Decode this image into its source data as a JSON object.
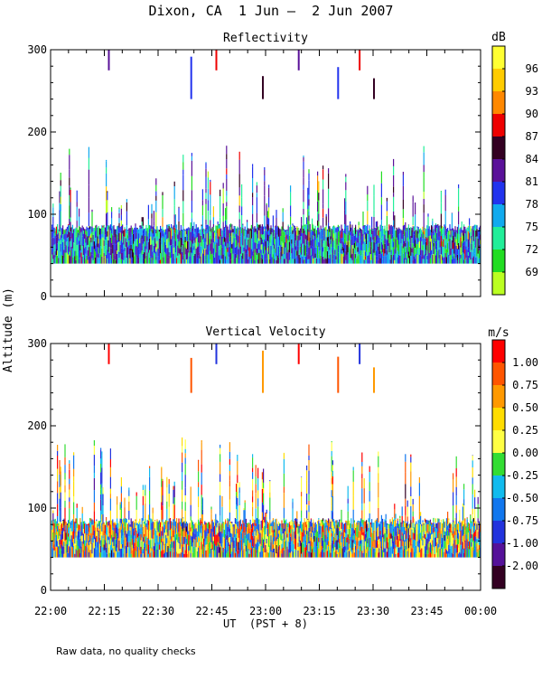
{
  "figure": {
    "title": "Dixon, CA  1 Jun —  2 Jun 2007",
    "ylabel": "Altitude (m)",
    "xlabel": "UT  (PST + 8)",
    "note": "Raw data, no quality checks"
  },
  "chart_data": [
    {
      "type": "heatmap",
      "title": "Reflectivity",
      "ylabel": "Altitude (m)",
      "xlabel": "UT  (PST + 8)",
      "x_ticks": [
        "22:00",
        "22:15",
        "22:30",
        "22:45",
        "23:00",
        "23:15",
        "23:30",
        "23:45",
        "00:00"
      ],
      "xlim_minutes": [
        0,
        120
      ],
      "y_ticks": [
        0,
        100,
        200,
        300
      ],
      "ylim": [
        0,
        300
      ],
      "colorbar": {
        "unit": "dB",
        "ticks": [
          "96",
          "93",
          "90",
          "87",
          "84",
          "81",
          "78",
          "75",
          "72",
          "69"
        ],
        "colors": [
          "#ffff33",
          "#ffcc00",
          "#ff8800",
          "#ee0000",
          "#330022",
          "#5a1199",
          "#2233ee",
          "#11aaee",
          "#22ee99",
          "#22dd22",
          "#bbff22"
        ]
      },
      "data_lower_altitude_m": 40,
      "data_typical_top_m": 80,
      "data_max_altitude_m": 300
    },
    {
      "type": "heatmap",
      "title": "Vertical Velocity",
      "ylabel": "Altitude (m)",
      "xlabel": "UT  (PST + 8)",
      "x_ticks": [
        "22:00",
        "22:15",
        "22:30",
        "22:45",
        "23:00",
        "23:15",
        "23:30",
        "23:45",
        "00:00"
      ],
      "xlim_minutes": [
        0,
        120
      ],
      "y_ticks": [
        0,
        100,
        200,
        300
      ],
      "ylim": [
        0,
        300
      ],
      "colorbar": {
        "unit": "m/s",
        "ticks": [
          "1.00",
          "0.75",
          "0.50",
          "0.25",
          "0.00",
          "-0.25",
          "-0.50",
          "-0.75",
          "-1.00",
          "-2.00"
        ],
        "colors": [
          "#ff0000",
          "#ff5500",
          "#ff9900",
          "#ffdd00",
          "#ffff44",
          "#33dd33",
          "#11bbee",
          "#1177ee",
          "#2233dd",
          "#551199",
          "#330022"
        ]
      },
      "data_lower_altitude_m": 40,
      "data_typical_top_m": 80,
      "data_max_altitude_m": 300
    }
  ]
}
